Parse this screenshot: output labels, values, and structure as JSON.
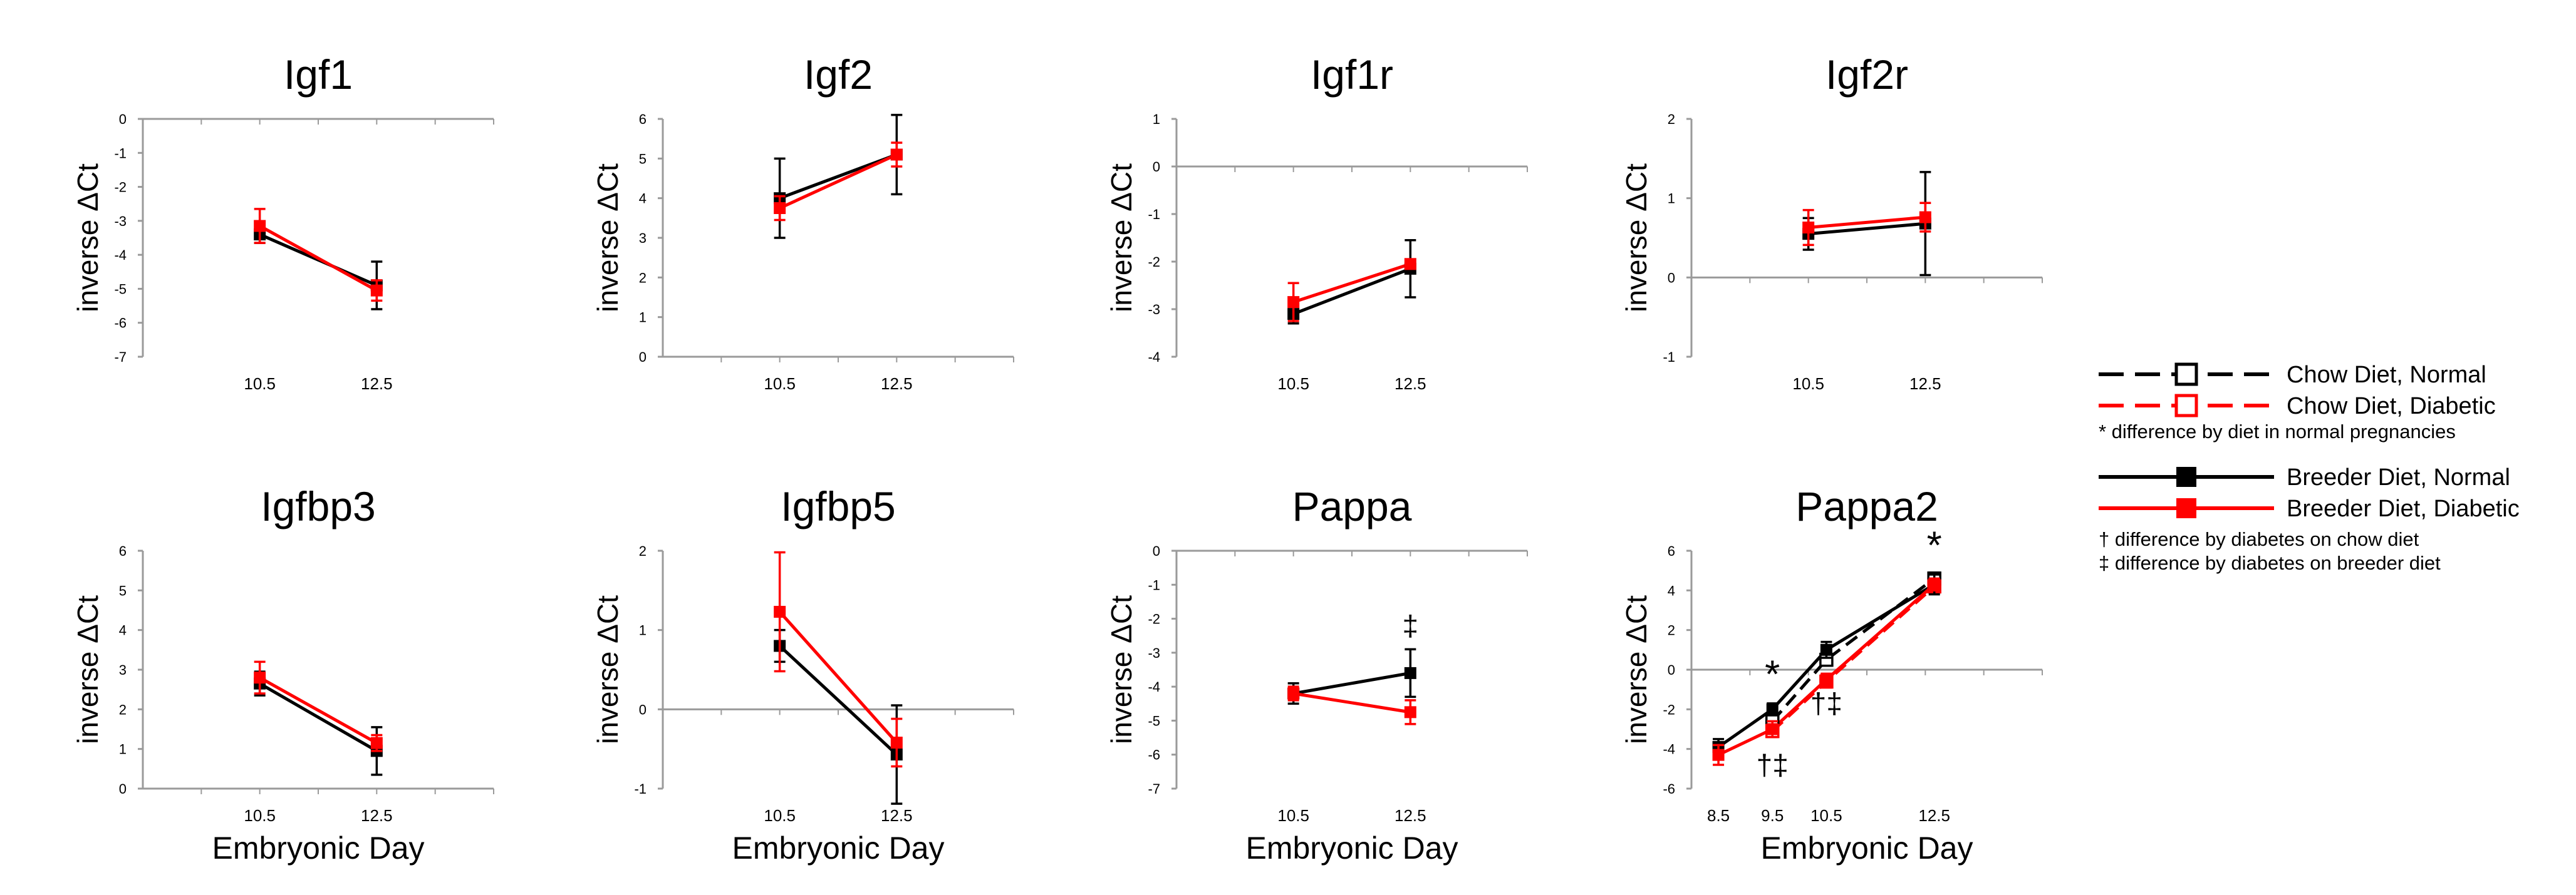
{
  "figure": {
    "x_axis_title": "Embryonic Day",
    "y_axis_title": "inverse ΔCt"
  },
  "legend": {
    "items": [
      {
        "label": "Chow Diet, Normal",
        "line": "dashed",
        "color": "#000000",
        "marker": "open-square"
      },
      {
        "label": "Chow Diet, Diabetic",
        "line": "dashed",
        "color": "#ff0000",
        "marker": "open-square"
      },
      {
        "label": "* difference by diet in normal pregnancies",
        "type": "note"
      },
      {
        "label": "Breeder Diet, Normal",
        "line": "solid",
        "color": "#000000",
        "marker": "filled-square"
      },
      {
        "label": "Breeder Diet, Diabetic",
        "line": "solid",
        "color": "#ff0000",
        "marker": "filled-square"
      },
      {
        "label": "† difference by diabetes on chow diet",
        "type": "note"
      },
      {
        "label": "‡ difference by diabetes on breeder diet",
        "type": "note"
      }
    ]
  },
  "colors": {
    "normal": "#000000",
    "diabetic": "#ff0000",
    "axis": "#9a9a9a"
  },
  "chart_data": [
    {
      "type": "line",
      "title": "Igf1",
      "x_ticks": [
        "10.5",
        "12.5"
      ],
      "x_positions": [
        10.5,
        12.5
      ],
      "xlim": [
        8.5,
        14.5
      ],
      "ylim": [
        -7,
        0
      ],
      "y_ticks": [
        "-7",
        "-6",
        "-5",
        "-4",
        "-3",
        "-2",
        "-1",
        "0"
      ],
      "y_tick_values": [
        -7,
        -6,
        -5,
        -4,
        -3,
        -2,
        -1,
        0
      ],
      "xlabel": "",
      "ylabel": "inverse ΔCt",
      "series": [
        {
          "name": "Breeder Diet, Normal",
          "style": "solid",
          "marker": "filled",
          "color": "#000000",
          "x": [
            10.5,
            12.5
          ],
          "y": [
            -3.4,
            -4.9
          ],
          "err": [
            0.25,
            0.7
          ]
        },
        {
          "name": "Breeder Diet, Diabetic",
          "style": "solid",
          "marker": "filled",
          "color": "#ff0000",
          "x": [
            10.5,
            12.5
          ],
          "y": [
            -3.15,
            -5.05
          ],
          "err": [
            0.5,
            0.3
          ]
        }
      ],
      "annotations": []
    },
    {
      "type": "line",
      "title": "Igf2",
      "x_ticks": [
        "10.5",
        "12.5"
      ],
      "x_positions": [
        10.5,
        12.5
      ],
      "xlim": [
        8.5,
        14.5
      ],
      "ylim": [
        0,
        6
      ],
      "y_ticks": [
        "0",
        "1",
        "2",
        "3",
        "4",
        "5",
        "6"
      ],
      "y_tick_values": [
        0,
        1,
        2,
        3,
        4,
        5,
        6
      ],
      "xlabel": "",
      "ylabel": "inverse ΔCt",
      "series": [
        {
          "name": "Breeder Diet, Normal",
          "style": "solid",
          "marker": "filled",
          "color": "#000000",
          "x": [
            10.5,
            12.5
          ],
          "y": [
            4.0,
            5.1
          ],
          "err": [
            1.0,
            1.0
          ]
        },
        {
          "name": "Breeder Diet, Diabetic",
          "style": "solid",
          "marker": "filled",
          "color": "#ff0000",
          "x": [
            10.5,
            12.5
          ],
          "y": [
            3.75,
            5.1
          ],
          "err": [
            0.3,
            0.3
          ]
        }
      ],
      "annotations": []
    },
    {
      "type": "line",
      "title": "Igf1r",
      "x_ticks": [
        "10.5",
        "12.5"
      ],
      "x_positions": [
        10.5,
        12.5
      ],
      "xlim": [
        8.5,
        14.5
      ],
      "ylim": [
        -4,
        1
      ],
      "y_ticks": [
        "-4",
        "-3",
        "-2",
        "-1",
        "0",
        "1"
      ],
      "y_tick_values": [
        -4,
        -3,
        -2,
        -1,
        0,
        1
      ],
      "xlabel": "",
      "ylabel": "inverse ΔCt",
      "series": [
        {
          "name": "Breeder Diet, Normal",
          "style": "solid",
          "marker": "filled",
          "color": "#000000",
          "x": [
            10.5,
            12.5
          ],
          "y": [
            -3.1,
            -2.15
          ],
          "err": [
            0.2,
            0.6
          ]
        },
        {
          "name": "Breeder Diet, Diabetic",
          "style": "solid",
          "marker": "filled",
          "color": "#ff0000",
          "x": [
            10.5,
            12.5
          ],
          "y": [
            -2.85,
            -2.05
          ],
          "err": [
            0.4,
            0.1
          ]
        }
      ],
      "annotations": []
    },
    {
      "type": "line",
      "title": "Igf2r",
      "x_ticks": [
        "10.5",
        "12.5"
      ],
      "x_positions": [
        10.5,
        12.5
      ],
      "xlim": [
        8.5,
        14.5
      ],
      "ylim": [
        -1,
        2
      ],
      "y_ticks": [
        "-1",
        "0",
        "1",
        "2"
      ],
      "y_tick_values": [
        -1,
        0,
        1,
        2
      ],
      "xlabel": "",
      "ylabel": "inverse ΔCt",
      "series": [
        {
          "name": "Breeder Diet, Normal",
          "style": "solid",
          "marker": "filled",
          "color": "#000000",
          "x": [
            10.5,
            12.5
          ],
          "y": [
            0.55,
            0.68
          ],
          "err": [
            0.2,
            0.65
          ]
        },
        {
          "name": "Breeder Diet, Diabetic",
          "style": "solid",
          "marker": "filled",
          "color": "#ff0000",
          "x": [
            10.5,
            12.5
          ],
          "y": [
            0.63,
            0.76
          ],
          "err": [
            0.22,
            0.18
          ]
        }
      ],
      "annotations": []
    },
    {
      "type": "line",
      "title": "Igfbp3",
      "x_ticks": [
        "10.5",
        "12.5"
      ],
      "x_positions": [
        10.5,
        12.5
      ],
      "xlim": [
        8.5,
        14.5
      ],
      "ylim": [
        0,
        6
      ],
      "y_ticks": [
        "0",
        "1",
        "2",
        "3",
        "4",
        "5",
        "6"
      ],
      "y_tick_values": [
        0,
        1,
        2,
        3,
        4,
        5,
        6
      ],
      "xlabel": "Embryonic Day",
      "ylabel": "inverse ΔCt",
      "series": [
        {
          "name": "Breeder Diet, Normal",
          "style": "solid",
          "marker": "filled",
          "color": "#000000",
          "x": [
            10.5,
            12.5
          ],
          "y": [
            2.65,
            0.95
          ],
          "err": [
            0.3,
            0.6
          ]
        },
        {
          "name": "Breeder Diet, Diabetic",
          "style": "solid",
          "marker": "filled",
          "color": "#ff0000",
          "x": [
            10.5,
            12.5
          ],
          "y": [
            2.8,
            1.15
          ],
          "err": [
            0.4,
            0.2
          ]
        }
      ],
      "annotations": []
    },
    {
      "type": "line",
      "title": "Igfbp5",
      "x_ticks": [
        "10.5",
        "12.5"
      ],
      "x_positions": [
        10.5,
        12.5
      ],
      "xlim": [
        8.5,
        14.5
      ],
      "ylim": [
        -1,
        2
      ],
      "y_ticks": [
        "-1",
        "0",
        "1",
        "2"
      ],
      "y_tick_values": [
        -1,
        0,
        1,
        2
      ],
      "xlabel": "Embryonic Day",
      "ylabel": "inverse ΔCt",
      "series": [
        {
          "name": "Breeder Diet, Normal",
          "style": "solid",
          "marker": "filled",
          "color": "#000000",
          "x": [
            10.5,
            12.5
          ],
          "y": [
            0.8,
            -0.57
          ],
          "err": [
            0.2,
            0.62
          ]
        },
        {
          "name": "Breeder Diet, Diabetic",
          "style": "solid",
          "marker": "filled",
          "color": "#ff0000",
          "x": [
            10.5,
            12.5
          ],
          "y": [
            1.23,
            -0.42
          ],
          "err": [
            0.75,
            0.3
          ]
        }
      ],
      "annotations": []
    },
    {
      "type": "line",
      "title": "Pappa",
      "x_ticks": [
        "10.5",
        "12.5"
      ],
      "x_positions": [
        10.5,
        12.5
      ],
      "xlim": [
        8.5,
        14.5
      ],
      "ylim": [
        -7,
        0
      ],
      "y_ticks": [
        "-7",
        "-6",
        "-5",
        "-4",
        "-3",
        "-2",
        "-1",
        "0"
      ],
      "y_tick_values": [
        -7,
        -6,
        -5,
        -4,
        -3,
        -2,
        -1,
        0
      ],
      "xlabel": "Embryonic Day",
      "ylabel": "inverse ΔCt",
      "series": [
        {
          "name": "Breeder Diet, Normal",
          "style": "solid",
          "marker": "filled",
          "color": "#000000",
          "x": [
            10.5,
            12.5
          ],
          "y": [
            -4.2,
            -3.6
          ],
          "err": [
            0.3,
            0.7
          ]
        },
        {
          "name": "Breeder Diet, Diabetic",
          "style": "solid",
          "marker": "filled",
          "color": "#ff0000",
          "x": [
            10.5,
            12.5
          ],
          "y": [
            -4.2,
            -4.75
          ],
          "err": [
            0.2,
            0.35
          ]
        }
      ],
      "annotations": [
        {
          "text": "‡",
          "x": 12.5,
          "y": -2.5
        }
      ]
    },
    {
      "type": "line",
      "title": "Pappa2",
      "x_ticks": [
        "8.5",
        "9.5",
        "10.5",
        "12.5"
      ],
      "x_positions": [
        8.5,
        9.5,
        10.5,
        12.5
      ],
      "xlim": [
        8.0,
        14.5
      ],
      "ylim": [
        -6,
        6
      ],
      "y_ticks": [
        "-6",
        "-4",
        "-2",
        "0",
        "2",
        "4",
        "6"
      ],
      "y_tick_values": [
        -6,
        -4,
        -2,
        0,
        2,
        4,
        6
      ],
      "xlabel": "Embryonic Day",
      "ylabel": "inverse ΔCt",
      "series": [
        {
          "name": "Chow Diet, Normal",
          "style": "dashed",
          "marker": "open",
          "color": "#000000",
          "x": [
            9.5,
            10.5,
            12.5
          ],
          "y": [
            -2.6,
            0.5,
            4.6
          ],
          "err": [
            0.3,
            0.3,
            0.3
          ]
        },
        {
          "name": "Chow Diet, Diabetic",
          "style": "dashed",
          "marker": "open",
          "color": "#ff0000",
          "x": [
            9.5,
            10.5,
            12.5
          ],
          "y": [
            -3.1,
            -0.6,
            4.2
          ],
          "err": [
            0.3,
            0.3,
            0.3
          ]
        },
        {
          "name": "Breeder Diet, Normal",
          "style": "solid",
          "marker": "filled",
          "color": "#000000",
          "x": [
            8.5,
            9.5,
            10.5,
            12.5
          ],
          "y": [
            -3.9,
            -2.0,
            1.0,
            4.3
          ],
          "err": [
            0.4,
            0.3,
            0.4,
            0.5
          ]
        },
        {
          "name": "Breeder Diet, Diabetic",
          "style": "solid",
          "marker": "filled",
          "color": "#ff0000",
          "x": [
            8.5,
            9.5,
            10.5,
            12.5
          ],
          "y": [
            -4.3,
            -3.0,
            -0.5,
            4.3
          ],
          "err": [
            0.5,
            0.4,
            0.3,
            0.3
          ]
        }
      ],
      "annotations": [
        {
          "text": "*",
          "x": 9.5,
          "y": -0.9
        },
        {
          "text": "†‡",
          "x": 9.5,
          "y": -5.3
        },
        {
          "text": "†‡",
          "x": 10.5,
          "y": -2.2
        },
        {
          "text": "*",
          "x": 12.5,
          "y": 5.6
        }
      ]
    }
  ]
}
